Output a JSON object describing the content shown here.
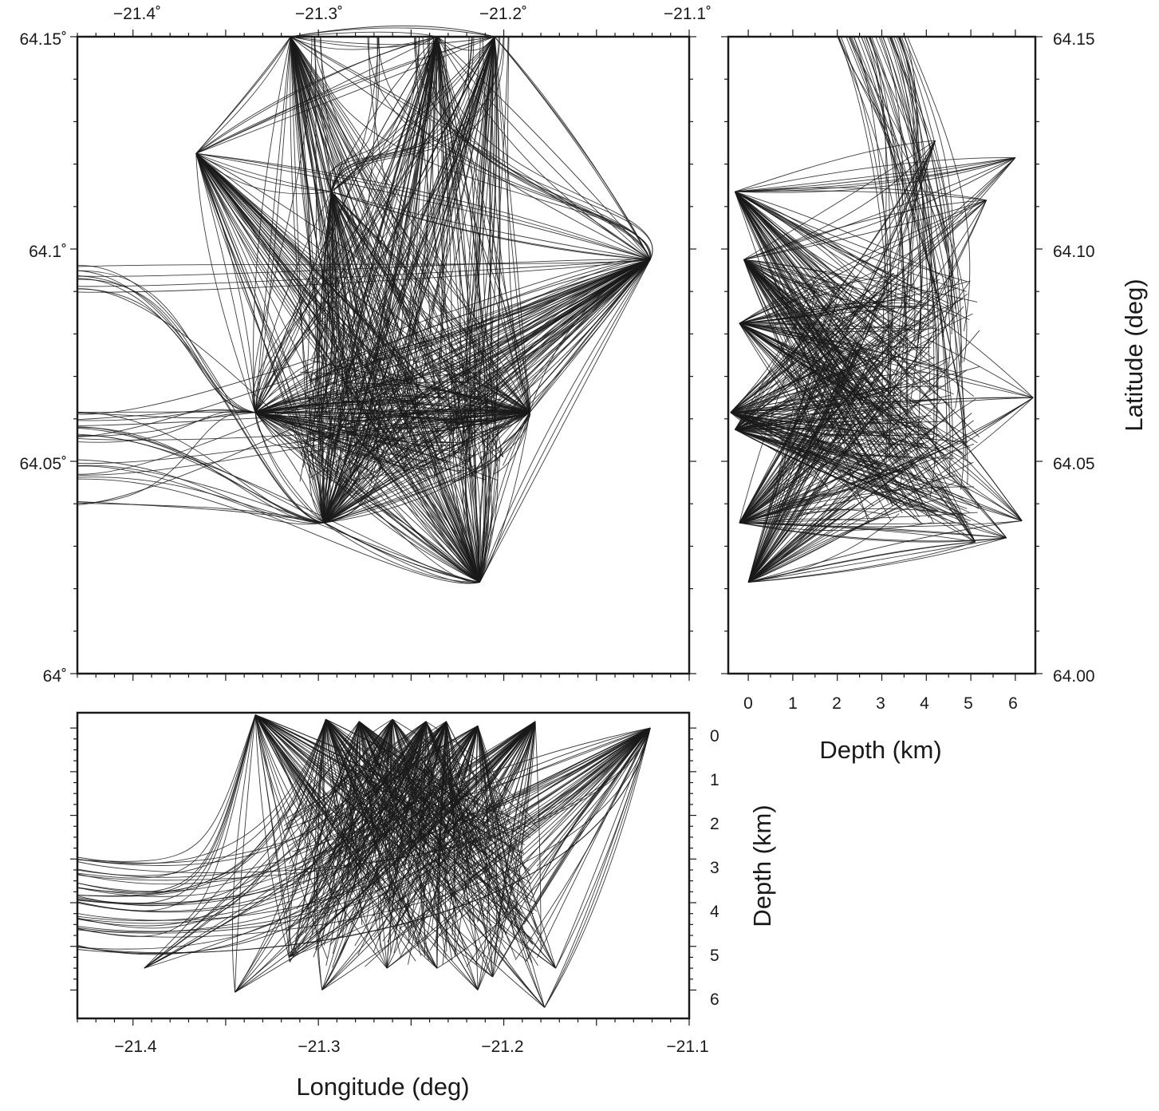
{
  "chart_data": [
    {
      "panel": "map",
      "type": "line",
      "description": "Ray paths in longitude-latitude plan view",
      "xlim": [
        -21.43,
        -21.1
      ],
      "ylim": [
        64.0,
        64.15
      ],
      "x_ticks": [
        {
          "value": -21.4,
          "label": "−21.4˚"
        },
        {
          "value": -21.3,
          "label": "−21.3˚"
        },
        {
          "value": -21.2,
          "label": "−21.2˚"
        },
        {
          "value": -21.1,
          "label": "−21.1˚"
        }
      ],
      "y_ticks": [
        {
          "value": 64.15,
          "label": "64.15˚"
        },
        {
          "value": 64.1,
          "label": "64.1˚"
        },
        {
          "value": 64.05,
          "label": "64.05˚"
        },
        {
          "value": 64.0,
          "label": "64˚"
        }
      ],
      "hubs": [
        {
          "lon": -21.334,
          "lat": 64.0615
        },
        {
          "lon": -21.297,
          "lat": 64.0355
        },
        {
          "lon": -21.213,
          "lat": 64.0215
        },
        {
          "lon": -21.121,
          "lat": 64.0975
        },
        {
          "lon": -21.186,
          "lat": 64.0615
        },
        {
          "lon": -21.293,
          "lat": 64.1135
        },
        {
          "lon": -21.366,
          "lat": 64.1225
        },
        {
          "lon": -21.236,
          "lat": 64.15
        },
        {
          "lon": -21.205,
          "lat": 64.15
        },
        {
          "lon": -21.315,
          "lat": 64.15
        }
      ],
      "left_edge_lats": [
        64.0615,
        64.059,
        64.057,
        64.0555,
        64.0495,
        64.0465,
        64.0405,
        64.0905,
        64.093,
        64.0955
      ]
    },
    {
      "panel": "cross-section-lat",
      "type": "line",
      "description": "Ray paths, depth vs latitude",
      "xlim": [
        -0.45,
        6.45
      ],
      "ylim": [
        64.0,
        64.15
      ],
      "xlabel": "Depth (km)",
      "ylabel": "Latitude (deg)",
      "x_ticks": [
        {
          "value": 0,
          "label": "0"
        },
        {
          "value": 1,
          "label": "1"
        },
        {
          "value": 2,
          "label": "2"
        },
        {
          "value": 3,
          "label": "3"
        },
        {
          "value": 4,
          "label": "4"
        },
        {
          "value": 5,
          "label": "5"
        },
        {
          "value": 6,
          "label": "6"
        }
      ],
      "y_ticks": [
        {
          "value": 64.15,
          "label": "64.15"
        },
        {
          "value": 64.1,
          "label": "64.10"
        },
        {
          "value": 64.05,
          "label": "64.05"
        },
        {
          "value": 64.0,
          "label": "64.00"
        }
      ],
      "surface_stations": [
        {
          "depth": -0.3,
          "lat": 64.1135
        },
        {
          "depth": -0.1,
          "lat": 64.0975
        },
        {
          "depth": -0.2,
          "lat": 64.0825
        },
        {
          "depth": -0.4,
          "lat": 64.0615
        },
        {
          "depth": -0.3,
          "lat": 64.0575
        },
        {
          "depth": -0.2,
          "lat": 64.0355
        },
        {
          "depth": 0.0,
          "lat": 64.0215
        }
      ],
      "deep_points": [
        {
          "depth": 6.0,
          "lat": 64.1215
        },
        {
          "depth": 6.4,
          "lat": 64.065
        },
        {
          "depth": 6.15,
          "lat": 64.036
        },
        {
          "depth": 5.35,
          "lat": 64.1115
        },
        {
          "depth": 4.2,
          "lat": 64.1255
        },
        {
          "depth": 5.8,
          "lat": 64.032
        },
        {
          "depth": 5.1,
          "lat": 64.031
        }
      ]
    },
    {
      "panel": "cross-section-lon",
      "type": "line",
      "description": "Ray paths, longitude vs depth",
      "xlim": [
        -21.43,
        -21.1
      ],
      "ylim": [
        6.65,
        -0.35
      ],
      "xlabel": "Longitude (deg)",
      "ylabel": "Depth (km)",
      "x_ticks": [
        {
          "value": -21.4,
          "label": "−21.4"
        },
        {
          "value": -21.3,
          "label": "−21.3"
        },
        {
          "value": -21.2,
          "label": "−21.2"
        },
        {
          "value": -21.1,
          "label": "−21.1"
        }
      ],
      "y_ticks": [
        {
          "value": 0,
          "label": "0"
        },
        {
          "value": 1,
          "label": "1"
        },
        {
          "value": 2,
          "label": "2"
        },
        {
          "value": 3,
          "label": "3"
        },
        {
          "value": 4,
          "label": "4"
        },
        {
          "value": 5,
          "label": "5"
        },
        {
          "value": 6,
          "label": "6"
        }
      ],
      "top_stations": [
        {
          "lon": -21.334,
          "depth": -0.3
        },
        {
          "lon": -21.296,
          "depth": -0.2
        },
        {
          "lon": -21.278,
          "depth": -0.15
        },
        {
          "lon": -21.26,
          "depth": -0.2
        },
        {
          "lon": -21.242,
          "depth": -0.15
        },
        {
          "lon": -21.231,
          "depth": -0.15
        },
        {
          "lon": -21.214,
          "depth": -0.05
        },
        {
          "lon": -21.183,
          "depth": -0.15
        },
        {
          "lon": -21.121,
          "depth": 0.0
        }
      ],
      "bottom_points": [
        {
          "lon": -21.394,
          "depth": 5.5
        },
        {
          "lon": -21.345,
          "depth": 6.05
        },
        {
          "lon": -21.298,
          "depth": 6.0
        },
        {
          "lon": -21.214,
          "depth": 6.0
        },
        {
          "lon": -21.178,
          "depth": 6.4
        },
        {
          "lon": -21.172,
          "depth": 5.5
        },
        {
          "lon": -21.316,
          "depth": 5.25
        },
        {
          "lon": -21.263,
          "depth": 5.5
        },
        {
          "lon": -21.236,
          "depth": 5.5
        },
        {
          "lon": -21.206,
          "depth": 5.7
        }
      ],
      "left_edge_depths": [
        3.0,
        3.3,
        3.6,
        3.85,
        3.95,
        4.3,
        4.6,
        5.0
      ]
    }
  ]
}
